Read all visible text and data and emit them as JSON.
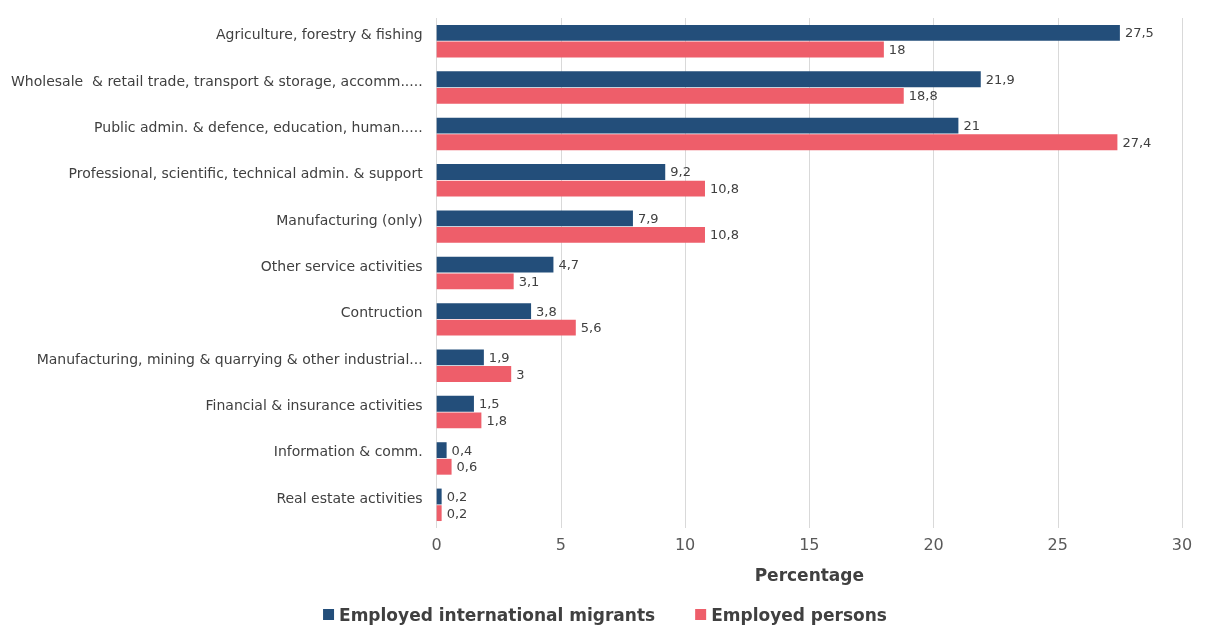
{
  "chart_data": {
    "type": "bar",
    "orientation": "horizontal",
    "xlabel": "Percentage",
    "categories": [
      "Agriculture, forestry & fishing",
      "Wholesale  & retail trade, transport & storage, accomm.....",
      "Public admin. & defence, education, human.....",
      "Professional, scientific, technical admin. & support",
      "Manufacturing (only)",
      "Other service activities",
      "Contruction",
      "Manufacturing, mining & quarrying & other industrial...",
      "Financial & insurance activities",
      "Information & comm.",
      "Real estate activities"
    ],
    "series": [
      {
        "name": "Employed international migrants",
        "color": "#234e7a",
        "values": [
          27.5,
          21.9,
          21,
          9.2,
          7.9,
          4.7,
          3.8,
          1.9,
          1.5,
          0.4,
          0.2
        ],
        "value_labels": [
          "27,5",
          "21,9",
          "21",
          "9,2",
          "7,9",
          "4,7",
          "3,8",
          "1,9",
          "1,5",
          "0,4",
          "0,2"
        ]
      },
      {
        "name": "Employed persons",
        "color": "#ee5e6a",
        "values": [
          18,
          18.8,
          27.4,
          10.8,
          10.8,
          3.1,
          5.6,
          3,
          1.8,
          0.6,
          0.2
        ],
        "value_labels": [
          "18",
          "18,8",
          "27,4",
          "10,8",
          "10,8",
          "3,1",
          "5,6",
          "3",
          "1,8",
          "0,6",
          "0,2"
        ]
      }
    ],
    "xlim": [
      0,
      30
    ],
    "xticks": [
      0,
      5,
      10,
      15,
      20,
      25,
      30
    ],
    "grid": "x",
    "legend": "bottom"
  }
}
